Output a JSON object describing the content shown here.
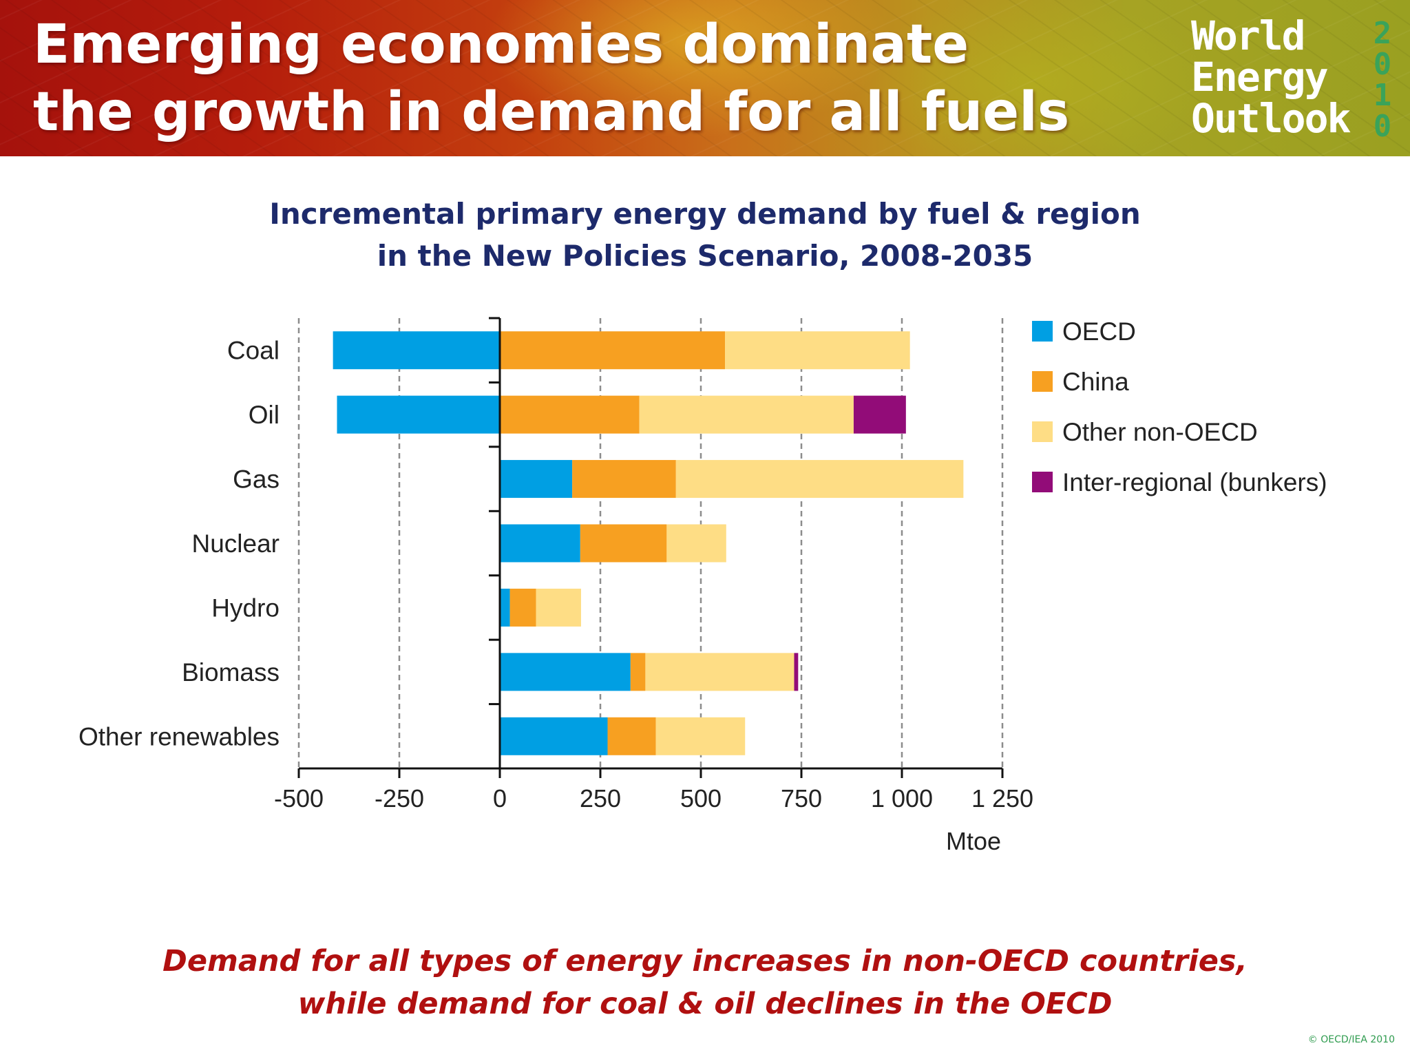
{
  "header": {
    "title_line1": "Emerging economies dominate",
    "title_line2": "the growth in demand for all fuels",
    "logo": {
      "words": [
        "World",
        "Energy",
        "Outlook"
      ],
      "year_digits": [
        "2",
        "0",
        "1",
        "0"
      ],
      "year_color": "#3aa35a"
    }
  },
  "chart_data": {
    "type": "bar",
    "orientation": "horizontal",
    "stacked": true,
    "title": "Incremental primary energy demand by fuel & region in the New Policies Scenario, 2008-2035",
    "title_lines": [
      "Incremental primary energy demand by fuel & region",
      "in the New Policies Scenario, 2008-2035"
    ],
    "xlabel": "Mtoe",
    "ylabel": "",
    "xlim": [
      -500,
      1250
    ],
    "x_ticks": [
      -500,
      -250,
      0,
      250,
      500,
      750,
      1000,
      1250
    ],
    "x_tick_labels": [
      "-500",
      "-250",
      "0",
      "250",
      "500",
      "750",
      "1 000",
      "1 250"
    ],
    "grid": "vertical dashed",
    "legend_position": "right",
    "categories": [
      "Coal",
      "Oil",
      "Gas",
      "Nuclear",
      "Hydro",
      "Biomass",
      "Other renewables"
    ],
    "series": [
      {
        "name": "OECD",
        "color": "#009fe3",
        "values": [
          -415,
          -405,
          180,
          200,
          25,
          325,
          268
        ]
      },
      {
        "name": "China",
        "color": "#f7a021",
        "values": [
          560,
          347,
          258,
          215,
          65,
          37,
          120
        ]
      },
      {
        "name": "Other non-OECD",
        "color": "#fedd85",
        "values": [
          460,
          533,
          715,
          148,
          112,
          370,
          222
        ]
      },
      {
        "name": "Inter-regional (bunkers)",
        "color": "#920c78",
        "values": [
          0,
          130,
          0,
          0,
          0,
          10,
          0
        ]
      }
    ]
  },
  "footer": {
    "line1": "Demand for all types of energy increases in non-OECD countries,",
    "line2": "while demand for coal & oil declines in the OECD"
  },
  "copyright": "© OECD/IEA 2010"
}
